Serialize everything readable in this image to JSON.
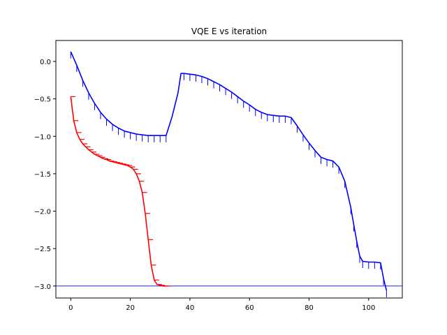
{
  "chart_data": {
    "type": "line",
    "title": "VQE E vs iteration",
    "xlabel": "",
    "ylabel": "",
    "xlim": [
      -5,
      111.3
    ],
    "ylim": [
      -3.16,
      0.28
    ],
    "xticks": [
      0,
      20,
      40,
      60,
      80,
      100
    ],
    "yticks": [
      0.0,
      -0.5,
      -1.0,
      -1.5,
      -2.0,
      -2.5,
      -3.0
    ],
    "xtick_labels": [
      "0",
      "20",
      "40",
      "60",
      "80",
      "100"
    ],
    "ytick_labels": [
      "0.0",
      "−0.5",
      "−1.0",
      "−1.5",
      "−2.0",
      "−2.5",
      "−3.0"
    ],
    "grid": false,
    "reference_line": {
      "y": -3.0,
      "color": "#0000ff"
    },
    "series": [
      {
        "color": "#ff0000",
        "errorbar_style": "horizontal",
        "x": [
          0,
          1,
          2,
          3,
          4,
          5,
          6,
          7,
          8,
          9,
          10,
          11,
          12,
          13,
          14,
          15,
          16,
          17,
          18,
          19,
          20,
          21,
          22,
          23,
          24,
          25,
          26,
          27,
          28,
          29,
          30,
          31,
          32
        ],
        "y": [
          -0.47,
          -0.79,
          -0.95,
          -1.04,
          -1.1,
          -1.14,
          -1.18,
          -1.21,
          -1.24,
          -1.26,
          -1.28,
          -1.3,
          -1.31,
          -1.33,
          -1.34,
          -1.35,
          -1.36,
          -1.37,
          -1.38,
          -1.39,
          -1.41,
          -1.44,
          -1.5,
          -1.6,
          -1.75,
          -2.03,
          -2.38,
          -2.72,
          -2.92,
          -2.98,
          -2.99,
          -3.0,
          -3.0
        ],
        "error": [
          1.6,
          1.6,
          1.6,
          1.6,
          1.6,
          1.6,
          1.6,
          1.6,
          1.6,
          1.6,
          1.6,
          1.6,
          1.6,
          1.6,
          1.6,
          1.6,
          1.6,
          1.6,
          1.6,
          1.6,
          1.6,
          1.6,
          1.6,
          1.6,
          1.6,
          1.6,
          1.6,
          1.6,
          1.6,
          1.6,
          1.6,
          1.6,
          1.6
        ]
      },
      {
        "color": "#0000ff",
        "errorbar_style": "vertical",
        "x": [
          0,
          2,
          4,
          6,
          8,
          10,
          12,
          14,
          16,
          18,
          20,
          22,
          24,
          26,
          28,
          30,
          32,
          34,
          36,
          37,
          38,
          40,
          42,
          44,
          46,
          48,
          50,
          52,
          54,
          56,
          58,
          60,
          62,
          64,
          66,
          68,
          70,
          72,
          74,
          76,
          78,
          80,
          82,
          84,
          86,
          88,
          90,
          92,
          94,
          95,
          96,
          97,
          98,
          100,
          102,
          104,
          105,
          106
        ],
        "y": [
          0.13,
          -0.05,
          -0.25,
          -0.42,
          -0.56,
          -0.68,
          -0.77,
          -0.84,
          -0.89,
          -0.93,
          -0.95,
          -0.97,
          -0.98,
          -0.99,
          -0.99,
          -0.99,
          -0.99,
          -0.74,
          -0.42,
          -0.16,
          -0.16,
          -0.17,
          -0.18,
          -0.2,
          -0.23,
          -0.27,
          -0.31,
          -0.36,
          -0.41,
          -0.47,
          -0.53,
          -0.58,
          -0.64,
          -0.68,
          -0.71,
          -0.72,
          -0.73,
          -0.73,
          -0.75,
          -0.86,
          -0.98,
          -1.09,
          -1.19,
          -1.28,
          -1.31,
          -1.33,
          -1.41,
          -1.6,
          -1.95,
          -2.18,
          -2.4,
          -2.6,
          -2.67,
          -2.68,
          -2.68,
          -2.69,
          -2.9,
          -3.06
        ],
        "error": [
          0.09,
          0.09,
          0.09,
          0.09,
          0.09,
          0.09,
          0.09,
          0.09,
          0.09,
          0.09,
          0.09,
          0.09,
          0.09,
          0.09,
          0.09,
          0.09,
          0.09,
          0.0,
          0.0,
          0.0,
          0.09,
          0.09,
          0.09,
          0.09,
          0.09,
          0.09,
          0.09,
          0.09,
          0.09,
          0.09,
          0.09,
          0.09,
          0.09,
          0.09,
          0.09,
          0.09,
          0.09,
          0.09,
          0.09,
          0.09,
          0.09,
          0.09,
          0.09,
          0.09,
          0.09,
          0.09,
          0.09,
          0.09,
          0.09,
          0.09,
          0.09,
          0.09,
          0.09,
          0.09,
          0.09,
          0.09,
          0.09,
          0.09
        ]
      }
    ]
  }
}
